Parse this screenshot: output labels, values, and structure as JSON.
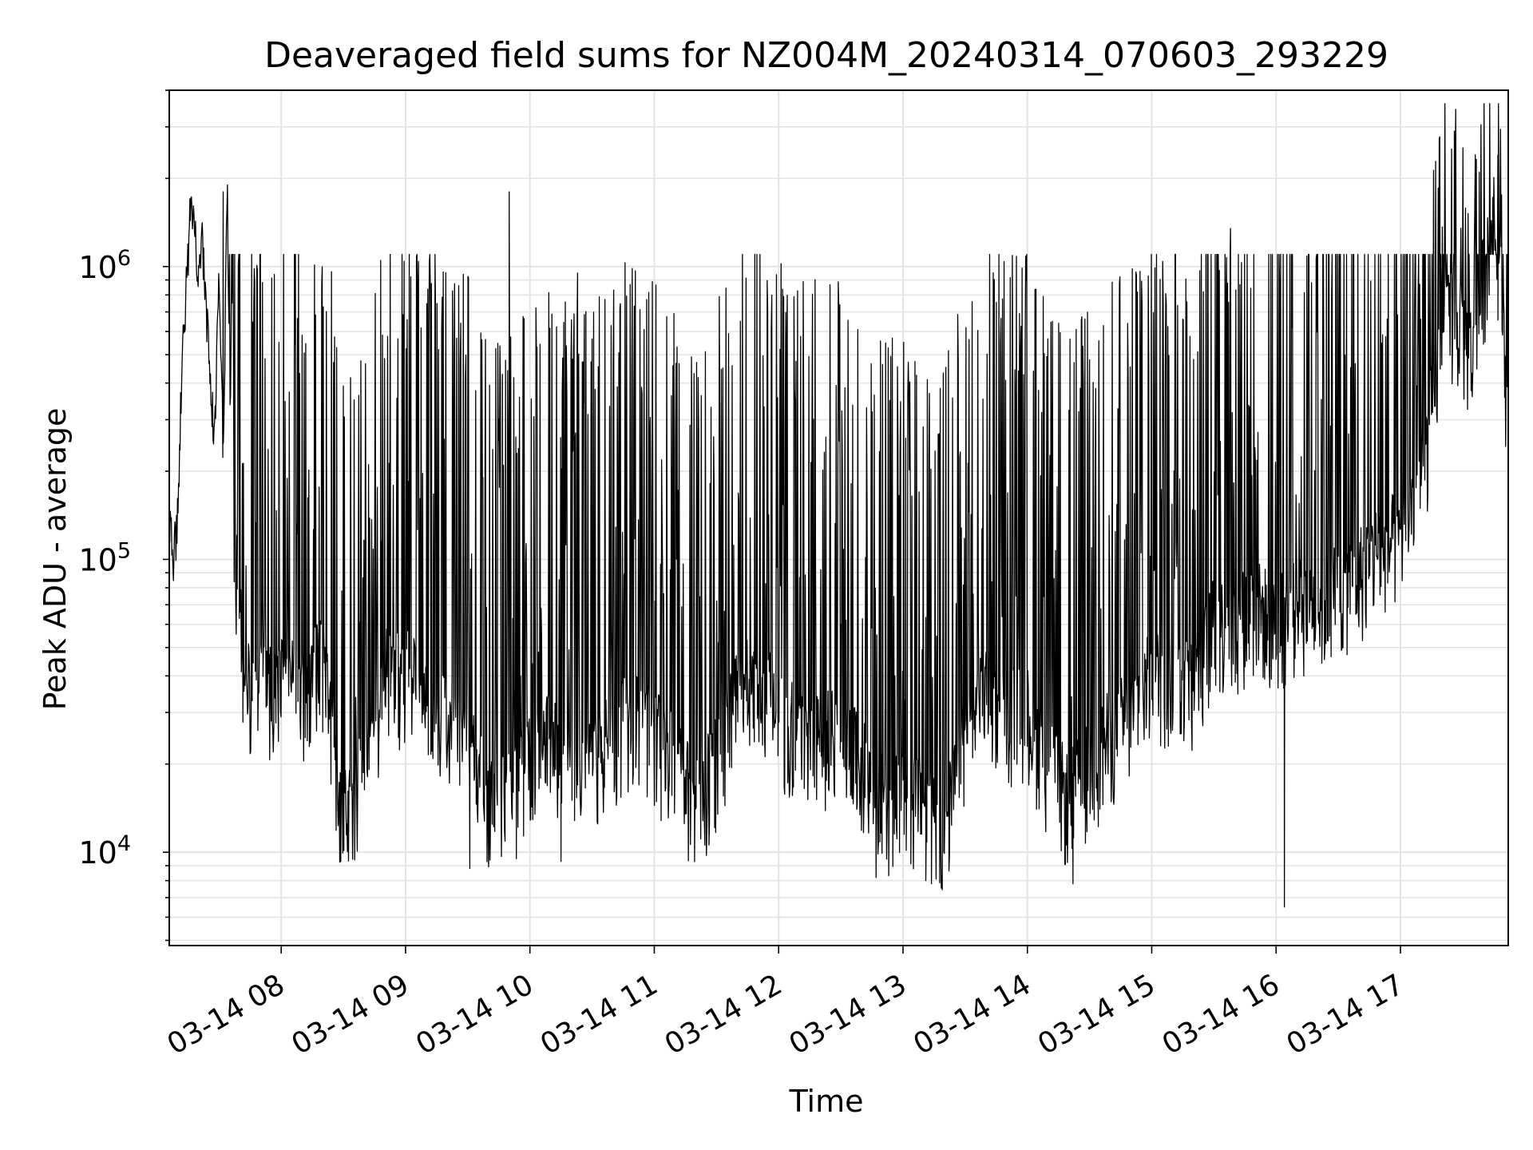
{
  "chart_data": {
    "type": "line",
    "title": "Deaveraged field sums for NZ004M_20240314_070603_293229",
    "xlabel": "Time",
    "ylabel": "Peak ADU - average",
    "yscale": "log",
    "ylim": [
      4800,
      4000000
    ],
    "xlim": [
      "2024-03-14 07:06",
      "2024-03-14 17:52"
    ],
    "x_tick_labels": [
      "03-14 08",
      "03-14 09",
      "03-14 10",
      "03-14 11",
      "03-14 12",
      "03-14 13",
      "03-14 14",
      "03-14 15",
      "03-14 16",
      "03-14 17"
    ],
    "x_tick_times": [
      "2024-03-14 08:00",
      "2024-03-14 09:00",
      "2024-03-14 10:00",
      "2024-03-14 11:00",
      "2024-03-14 12:00",
      "2024-03-14 13:00",
      "2024-03-14 14:00",
      "2024-03-14 15:00",
      "2024-03-14 16:00",
      "2024-03-14 17:00"
    ],
    "y_ticks": [
      {
        "base": "10",
        "exp": "4",
        "value": 10000
      },
      {
        "base": "10",
        "exp": "5",
        "value": 100000
      },
      {
        "base": "10",
        "exp": "6",
        "value": 1000000
      }
    ],
    "grid": true,
    "line_color": "#000000",
    "series": [
      {
        "x": [
          "07:06",
          "07:08",
          "07:10",
          "07:12",
          "07:14",
          "07:16",
          "07:18",
          "07:20",
          "07:22",
          "07:24",
          "07:26",
          "07:28",
          "07:30",
          "07:32",
          "07:34",
          "07:36",
          "07:38",
          "07:40",
          "07:42",
          "07:44",
          "07:46",
          "07:48",
          "07:50",
          "07:52",
          "07:54",
          "07:56",
          "07:58",
          "08:00",
          "08:10",
          "08:20",
          "08:30",
          "08:40",
          "08:50",
          "09:00",
          "09:10",
          "09:20",
          "09:30",
          "09:40",
          "09:50",
          "10:00",
          "10:10",
          "10:20",
          "10:30",
          "10:40",
          "10:50",
          "11:00",
          "11:10",
          "11:20",
          "11:30",
          "11:40",
          "11:50",
          "12:00",
          "12:10",
          "12:20",
          "12:30",
          "12:40",
          "12:50",
          "13:00",
          "13:10",
          "13:20",
          "13:30",
          "13:40",
          "13:50",
          "14:00",
          "14:10",
          "14:20",
          "14:30",
          "14:40",
          "14:50",
          "15:00",
          "15:10",
          "15:20",
          "15:30",
          "15:40",
          "15:50",
          "16:00",
          "16:10",
          "16:20",
          "16:30",
          "16:40",
          "16:50",
          "17:00",
          "17:10",
          "17:20",
          "17:25",
          "17:30",
          "17:35",
          "17:40",
          "17:45",
          "17:50",
          "17:52"
        ],
        "y": [
          150000,
          100000,
          140000,
          420000,
          800000,
          1500000,
          1400000,
          900000,
          1200000,
          700000,
          350000,
          280000,
          1100000,
          220000,
          1800000,
          160000,
          100000,
          60000,
          45000,
          35000,
          40000,
          30000,
          60000,
          50000,
          40000,
          30000,
          45000,
          40000,
          35000,
          45000,
          13000,
          20000,
          40000,
          40000,
          35000,
          30000,
          25000,
          15000,
          15000,
          20000,
          25000,
          20000,
          20000,
          25000,
          30000,
          25000,
          20000,
          15000,
          20000,
          35000,
          40000,
          30000,
          25000,
          25000,
          25000,
          20000,
          15000,
          15000,
          15000,
          12000,
          25000,
          35000,
          30000,
          30000,
          20000,
          15000,
          20000,
          25000,
          30000,
          40000,
          40000,
          40000,
          60000,
          60000,
          70000,
          60000,
          70000,
          70000,
          80000,
          90000,
          110000,
          120000,
          180000,
          600000,
          700000,
          600000,
          500000,
          900000,
          1700000,
          700000,
          200000
        ]
      }
    ],
    "spikes": {
      "description_free": true,
      "peak_values": [
        1800000,
        1100000,
        950000,
        1050000,
        1800000,
        950000,
        900000,
        950000,
        1000000,
        1100000,
        1350000,
        1000000,
        2900000,
        2400000
      ],
      "trough_values": [
        19000,
        11000,
        8800,
        9200,
        9300,
        12000,
        8200,
        8000,
        8800,
        7800,
        6500,
        9500,
        15000
      ]
    }
  }
}
